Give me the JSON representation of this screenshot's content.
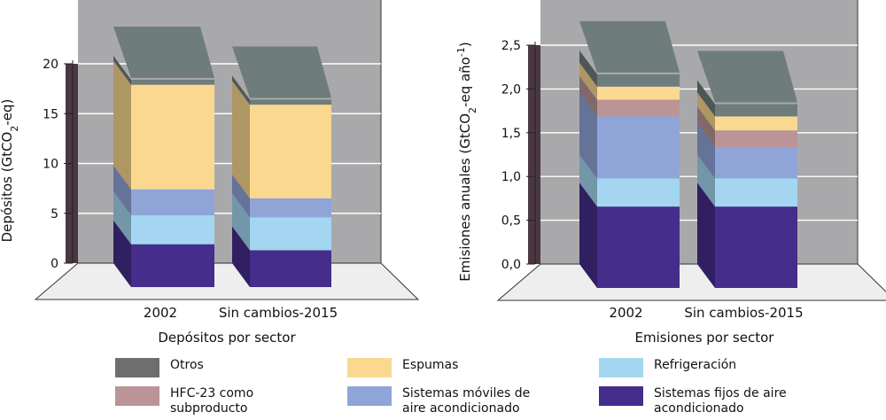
{
  "charts": [
    {
      "type": "bar",
      "stacked": true,
      "title": "Depósitos por sector",
      "ylabel": "Depósitos (GtCO2-eq)",
      "ylabel_main": "Depósitos (GtCO",
      "ylabel_sub": "2",
      "ylabel_tail": "-eq)",
      "ylim": [
        0,
        20
      ],
      "yticks": [
        0,
        5,
        10,
        15,
        20
      ],
      "ytick_labels": [
        "0",
        "5",
        "10",
        "15",
        "20"
      ],
      "categories": [
        "2002",
        "Sin cambios-2015"
      ],
      "series": [
        {
          "name": "Sistemas fijos de aire acondicionado",
          "values": [
            4.3,
            3.7
          ]
        },
        {
          "name": "Refrigeración",
          "values": [
            2.9,
            3.3
          ]
        },
        {
          "name": "Sistemas móviles de aire acondicionado",
          "values": [
            2.6,
            1.9
          ]
        },
        {
          "name": "HFC-23 como subproducto",
          "values": [
            0.0,
            0.0
          ]
        },
        {
          "name": "Espumas",
          "values": [
            10.5,
            9.4
          ]
        },
        {
          "name": "Otros",
          "values": [
            0.5,
            0.5
          ]
        }
      ]
    },
    {
      "type": "bar",
      "stacked": true,
      "title": "Emisiones por sector",
      "ylabel": "Emisiones anuales (GtCO2-eq año-1)",
      "ylabel_main": "Emisiones anuales (GtCO",
      "ylabel_sub": "2",
      "ylabel_mid": "-eq año",
      "ylabel_sup": "-1",
      "ylabel_tail": ")",
      "ylim": [
        0,
        2.5
      ],
      "yticks": [
        0,
        0.5,
        1.0,
        1.5,
        2.0,
        2.5
      ],
      "ytick_labels": [
        "0,0",
        "0,5",
        "1,0",
        "1,5",
        "2,0",
        "2,5"
      ],
      "categories": [
        "2002",
        "Sin cambios-2015"
      ],
      "series": [
        {
          "name": "Sistemas fijos de aire acondicionado",
          "values": [
            0.93,
            0.93
          ]
        },
        {
          "name": "Refrigeración",
          "values": [
            0.32,
            0.32
          ]
        },
        {
          "name": "Sistemas móviles de aire acondicionado",
          "values": [
            0.71,
            0.36
          ]
        },
        {
          "name": "HFC-23 como subproducto",
          "values": [
            0.19,
            0.19
          ]
        },
        {
          "name": "Espumas",
          "values": [
            0.15,
            0.16
          ]
        },
        {
          "name": "Otros",
          "values": [
            0.14,
            0.14
          ]
        }
      ]
    }
  ],
  "colors": {
    "Sistemas fijos de aire acondicionado": "#452d8b",
    "Refrigeración": "#a4d6f2",
    "Sistemas móviles de aire acondicionado": "#8fa5d8",
    "HFC-23 como subproducto": "#bb9498",
    "Espumas": "#fad88f",
    "Otros": "#6f7c7c",
    "wall": "#a9a9ab",
    "floor": "#eeeeee"
  },
  "legend": {
    "items": [
      {
        "label": "Otros",
        "color": "#6d6e70"
      },
      {
        "label": "HFC-23 como subproducto",
        "color": "#bb9498"
      },
      {
        "label": "Espumas",
        "color": "#fad88f"
      },
      {
        "label": "Sistemas móviles de aire acondicionado",
        "color": "#8fa5d8"
      },
      {
        "label": "Refrigeración",
        "color": "#a4d6f2"
      },
      {
        "label": "Sistemas fijos de aire acondicionado",
        "color": "#452d8b"
      }
    ]
  }
}
